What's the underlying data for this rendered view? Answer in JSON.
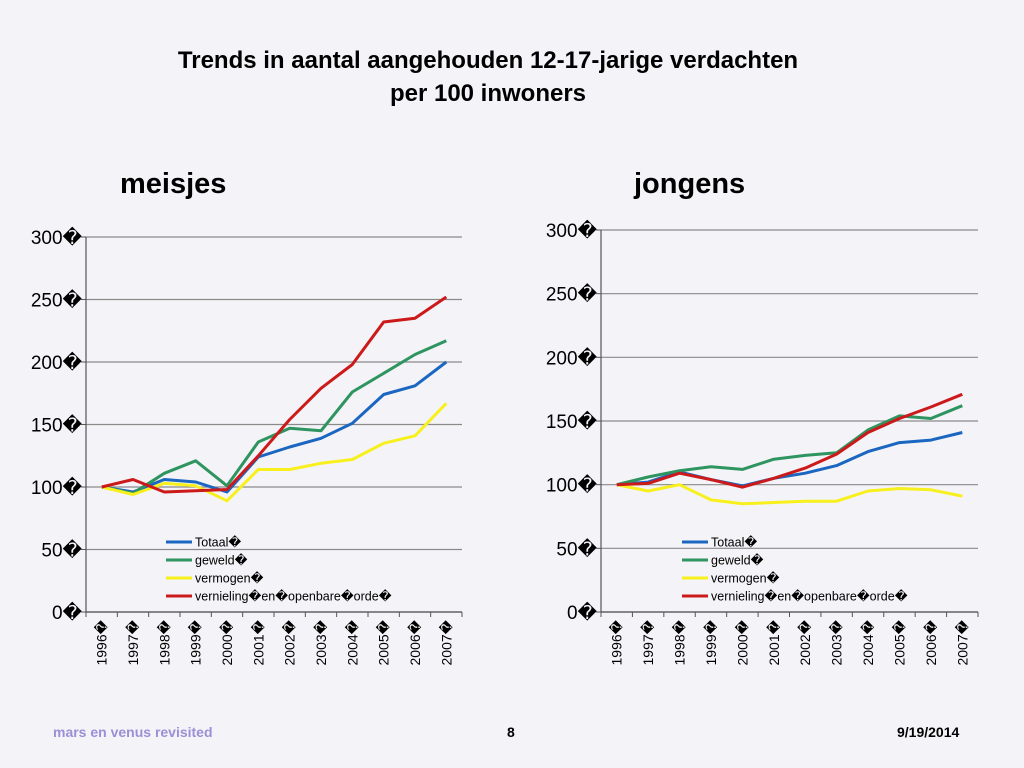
{
  "slide": {
    "title_line1": "Trends in aantal aangehouden 12-17-jarige verdachten",
    "title_line2": "per 100 inwoners",
    "footer_left": "mars en venus revisited",
    "page_number": "8",
    "date": "9/19/2014"
  },
  "colors": {
    "Totaal": "#1a66c0",
    "geweld": "#2e9460",
    "vermogen": "#f7f01c",
    "vernieling": "#cc1a1a"
  },
  "chart_data": [
    {
      "type": "line",
      "title": "meisjes",
      "x": [
        "1996",
        "1997",
        "1998",
        "1999",
        "2000",
        "2001",
        "2002",
        "2003",
        "2004",
        "2005",
        "2006",
        "2007"
      ],
      "tick_suffix": "�",
      "ylim": [
        0,
        300
      ],
      "yticks": [
        0,
        50,
        100,
        150,
        200,
        250,
        300
      ],
      "grid": true,
      "legend_position": "bottom-center inside",
      "series": [
        {
          "name": "Totaal�",
          "key": "Totaal",
          "values": [
            100,
            96,
            106,
            104,
            96,
            124,
            132,
            139,
            151,
            174,
            181,
            200
          ]
        },
        {
          "name": "geweld�",
          "key": "geweld",
          "values": [
            100,
            95,
            111,
            121,
            101,
            136,
            147,
            145,
            176,
            191,
            206,
            217
          ]
        },
        {
          "name": "vermogen�",
          "key": "vermogen",
          "values": [
            100,
            94,
            103,
            101,
            89,
            114,
            114,
            119,
            122,
            135,
            141,
            167
          ]
        },
        {
          "name": "vernieling�en�openbare�orde�",
          "key": "vernieling",
          "values": [
            100,
            106,
            96,
            97,
            98,
            125,
            154,
            179,
            198,
            232,
            235,
            252
          ]
        }
      ]
    },
    {
      "type": "line",
      "title": "jongens",
      "x": [
        "1996",
        "1997",
        "1998",
        "1999",
        "2000",
        "2001",
        "2002",
        "2003",
        "2004",
        "2005",
        "2006",
        "2007"
      ],
      "tick_suffix": "�",
      "ylim": [
        0,
        300
      ],
      "yticks": [
        0,
        50,
        100,
        150,
        200,
        250,
        300
      ],
      "grid": true,
      "legend_position": "bottom-center inside",
      "series": [
        {
          "name": "Totaal�",
          "key": "Totaal",
          "values": [
            100,
            102,
            110,
            104,
            99,
            105,
            109,
            115,
            126,
            133,
            135,
            141
          ]
        },
        {
          "name": "geweld�",
          "key": "geweld",
          "values": [
            100,
            106,
            111,
            114,
            112,
            120,
            123,
            125,
            143,
            154,
            152,
            162
          ]
        },
        {
          "name": "vermogen�",
          "key": "vermogen",
          "values": [
            100,
            95,
            100,
            88,
            85,
            86,
            87,
            87,
            95,
            97,
            96,
            91
          ]
        },
        {
          "name": "vernieling�en�openbare�orde�",
          "key": "vernieling",
          "values": [
            100,
            101,
            109,
            104,
            98,
            105,
            113,
            124,
            141,
            152,
            161,
            171
          ]
        }
      ]
    }
  ]
}
